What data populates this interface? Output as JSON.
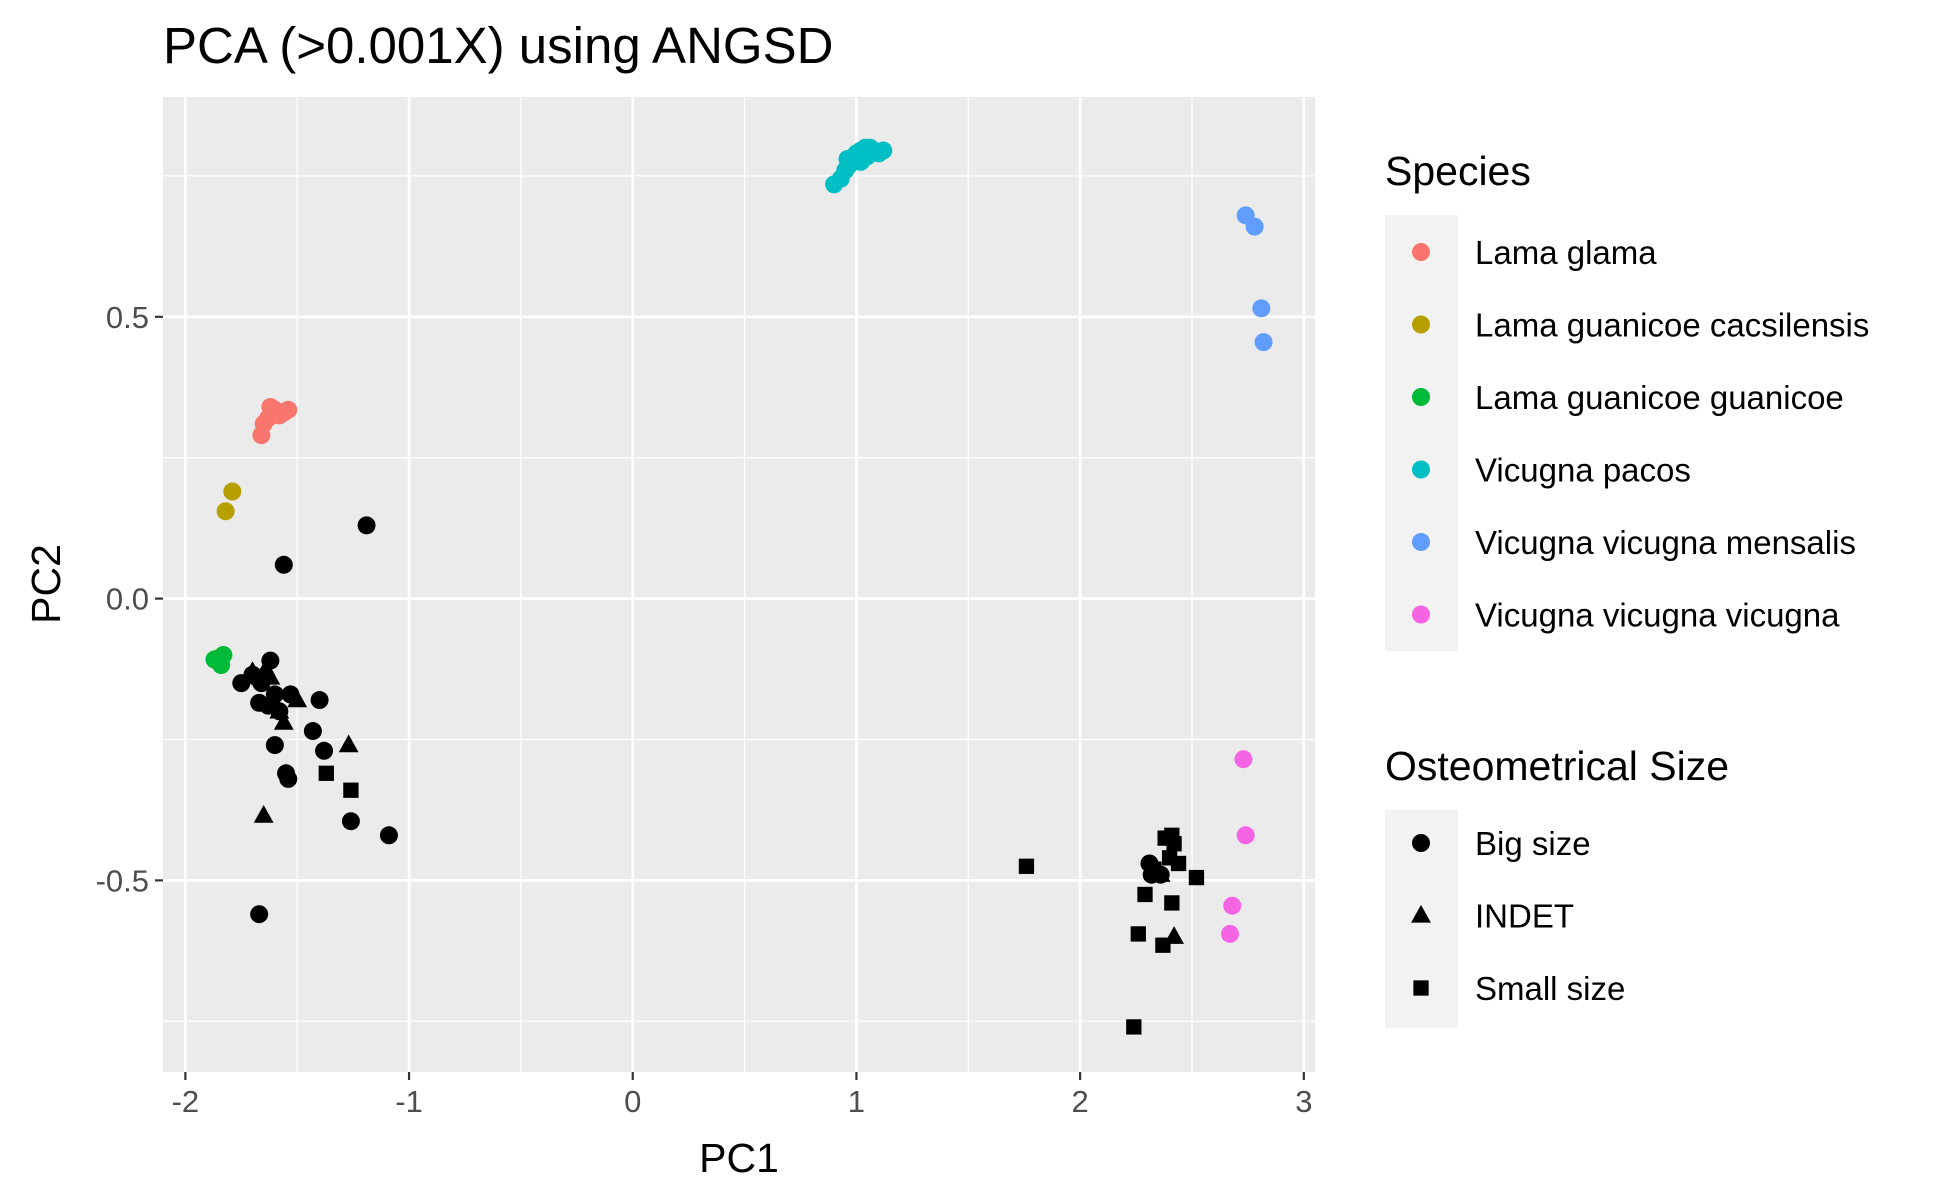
{
  "chart_data": {
    "type": "scatter",
    "title": "PCA (>0.001X) using ANGSD",
    "xlabel": "PC1",
    "ylabel": "PC2",
    "xlim": [
      -2.1,
      3.05
    ],
    "ylim": [
      -0.84,
      0.89
    ],
    "xticks": [
      -2,
      -1,
      0,
      1,
      2,
      3
    ],
    "yticks": [
      -0.5,
      0.0,
      0.5
    ],
    "xtick_labels": [
      "-2",
      "-1",
      "0",
      "1",
      "2",
      "3"
    ],
    "ytick_labels": [
      "-0.5",
      "0.0",
      "0.5"
    ],
    "grid": true,
    "legend_placement": "right",
    "legends": {
      "color": {
        "title": "Species",
        "entries": [
          {
            "label": "Lama glama",
            "color": "#F8766D"
          },
          {
            "label": "Lama guanicoe cacsilensis",
            "color": "#B79F00"
          },
          {
            "label": "Lama guanicoe guanicoe",
            "color": "#00BA38"
          },
          {
            "label": "Vicugna pacos",
            "color": "#00BFC4"
          },
          {
            "label": "Vicugna vicugna mensalis",
            "color": "#619CFF"
          },
          {
            "label": "Vicugna vicugna vicugna",
            "color": "#F564E3"
          }
        ]
      },
      "shape": {
        "title": "Osteometrical Size",
        "entries": [
          {
            "label": "Big size",
            "shape": "circle"
          },
          {
            "label": "INDET",
            "shape": "triangle"
          },
          {
            "label": "Small size",
            "shape": "square"
          }
        ]
      }
    },
    "series": [
      {
        "group": "Lama glama",
        "color": "#F8766D",
        "shape": "circle",
        "points": [
          [
            -1.62,
            0.34
          ],
          [
            -1.6,
            0.335
          ],
          [
            -1.56,
            0.33
          ],
          [
            -1.54,
            0.335
          ],
          [
            -1.58,
            0.325
          ],
          [
            -1.63,
            0.32
          ],
          [
            -1.65,
            0.31
          ],
          [
            -1.66,
            0.29
          ],
          [
            -1.6,
            0.33
          ]
        ]
      },
      {
        "group": "Lama guanicoe cacsilensis",
        "color": "#B79F00",
        "shape": "circle",
        "points": [
          [
            -1.79,
            0.19
          ],
          [
            -1.82,
            0.155
          ],
          [
            -1.85,
            -0.105
          ],
          [
            -1.86,
            -0.11
          ]
        ]
      },
      {
        "group": "Lama guanicoe guanicoe",
        "color": "#00BA38",
        "shape": "circle",
        "points": [
          [
            -1.83,
            -0.1
          ],
          [
            -1.84,
            -0.118
          ],
          [
            -1.87,
            -0.108
          ]
        ]
      },
      {
        "group": "Vicugna pacos",
        "color": "#00BFC4",
        "shape": "circle",
        "points": [
          [
            0.9,
            0.735
          ],
          [
            0.93,
            0.745
          ],
          [
            0.95,
            0.76
          ],
          [
            0.97,
            0.77
          ],
          [
            0.98,
            0.782
          ],
          [
            1.0,
            0.79
          ],
          [
            1.02,
            0.795
          ],
          [
            1.04,
            0.8
          ],
          [
            1.06,
            0.8
          ],
          [
            1.08,
            0.795
          ],
          [
            1.1,
            0.79
          ],
          [
            1.12,
            0.795
          ],
          [
            1.05,
            0.785
          ],
          [
            0.96,
            0.78
          ],
          [
            1.02,
            0.775
          ]
        ]
      },
      {
        "group": "Vicugna vicugna mensalis",
        "color": "#619CFF",
        "shape": "circle",
        "points": [
          [
            2.74,
            0.68
          ],
          [
            2.78,
            0.66
          ],
          [
            2.81,
            0.515
          ],
          [
            2.82,
            0.455
          ]
        ]
      },
      {
        "group": "Vicugna vicugna vicugna",
        "color": "#F564E3",
        "shape": "circle",
        "points": [
          [
            2.73,
            -0.285
          ],
          [
            2.74,
            -0.42
          ],
          [
            2.68,
            -0.545
          ],
          [
            2.67,
            -0.595
          ]
        ]
      },
      {
        "group": "Big size",
        "color": "#000000",
        "shape": "circle",
        "points": [
          [
            -1.19,
            0.13
          ],
          [
            -1.56,
            0.06
          ],
          [
            -1.62,
            -0.11
          ],
          [
            -1.68,
            -0.14
          ],
          [
            -1.7,
            -0.135
          ],
          [
            -1.66,
            -0.15
          ],
          [
            -1.75,
            -0.15
          ],
          [
            -1.6,
            -0.17
          ],
          [
            -1.53,
            -0.17
          ],
          [
            -1.67,
            -0.185
          ],
          [
            -1.63,
            -0.19
          ],
          [
            -1.58,
            -0.2
          ],
          [
            -1.4,
            -0.18
          ],
          [
            -1.43,
            -0.235
          ],
          [
            -1.6,
            -0.26
          ],
          [
            -1.38,
            -0.27
          ],
          [
            -1.55,
            -0.31
          ],
          [
            -1.54,
            -0.32
          ],
          [
            -1.26,
            -0.395
          ],
          [
            -1.09,
            -0.42
          ],
          [
            -1.67,
            -0.56
          ],
          [
            2.31,
            -0.47
          ],
          [
            2.32,
            -0.49
          ],
          [
            2.36,
            -0.49
          ]
        ]
      },
      {
        "group": "INDET",
        "color": "#000000",
        "shape": "triangle",
        "points": [
          [
            -1.7,
            -0.13
          ],
          [
            -1.64,
            -0.125
          ],
          [
            -1.62,
            -0.14
          ],
          [
            -1.58,
            -0.2
          ],
          [
            -1.56,
            -0.22
          ],
          [
            -1.5,
            -0.18
          ],
          [
            -1.27,
            -0.26
          ],
          [
            -1.65,
            -0.385
          ],
          [
            2.36,
            -0.49
          ],
          [
            2.42,
            -0.6
          ]
        ]
      },
      {
        "group": "Small size",
        "color": "#000000",
        "shape": "square",
        "points": [
          [
            -1.37,
            -0.31
          ],
          [
            -1.26,
            -0.34
          ],
          [
            1.76,
            -0.475
          ],
          [
            2.38,
            -0.425
          ],
          [
            2.41,
            -0.42
          ],
          [
            2.42,
            -0.435
          ],
          [
            2.4,
            -0.46
          ],
          [
            2.44,
            -0.47
          ],
          [
            2.52,
            -0.495
          ],
          [
            2.33,
            -0.48
          ],
          [
            2.29,
            -0.525
          ],
          [
            2.41,
            -0.54
          ],
          [
            2.26,
            -0.595
          ],
          [
            2.37,
            -0.615
          ],
          [
            2.24,
            -0.76
          ]
        ]
      }
    ]
  }
}
